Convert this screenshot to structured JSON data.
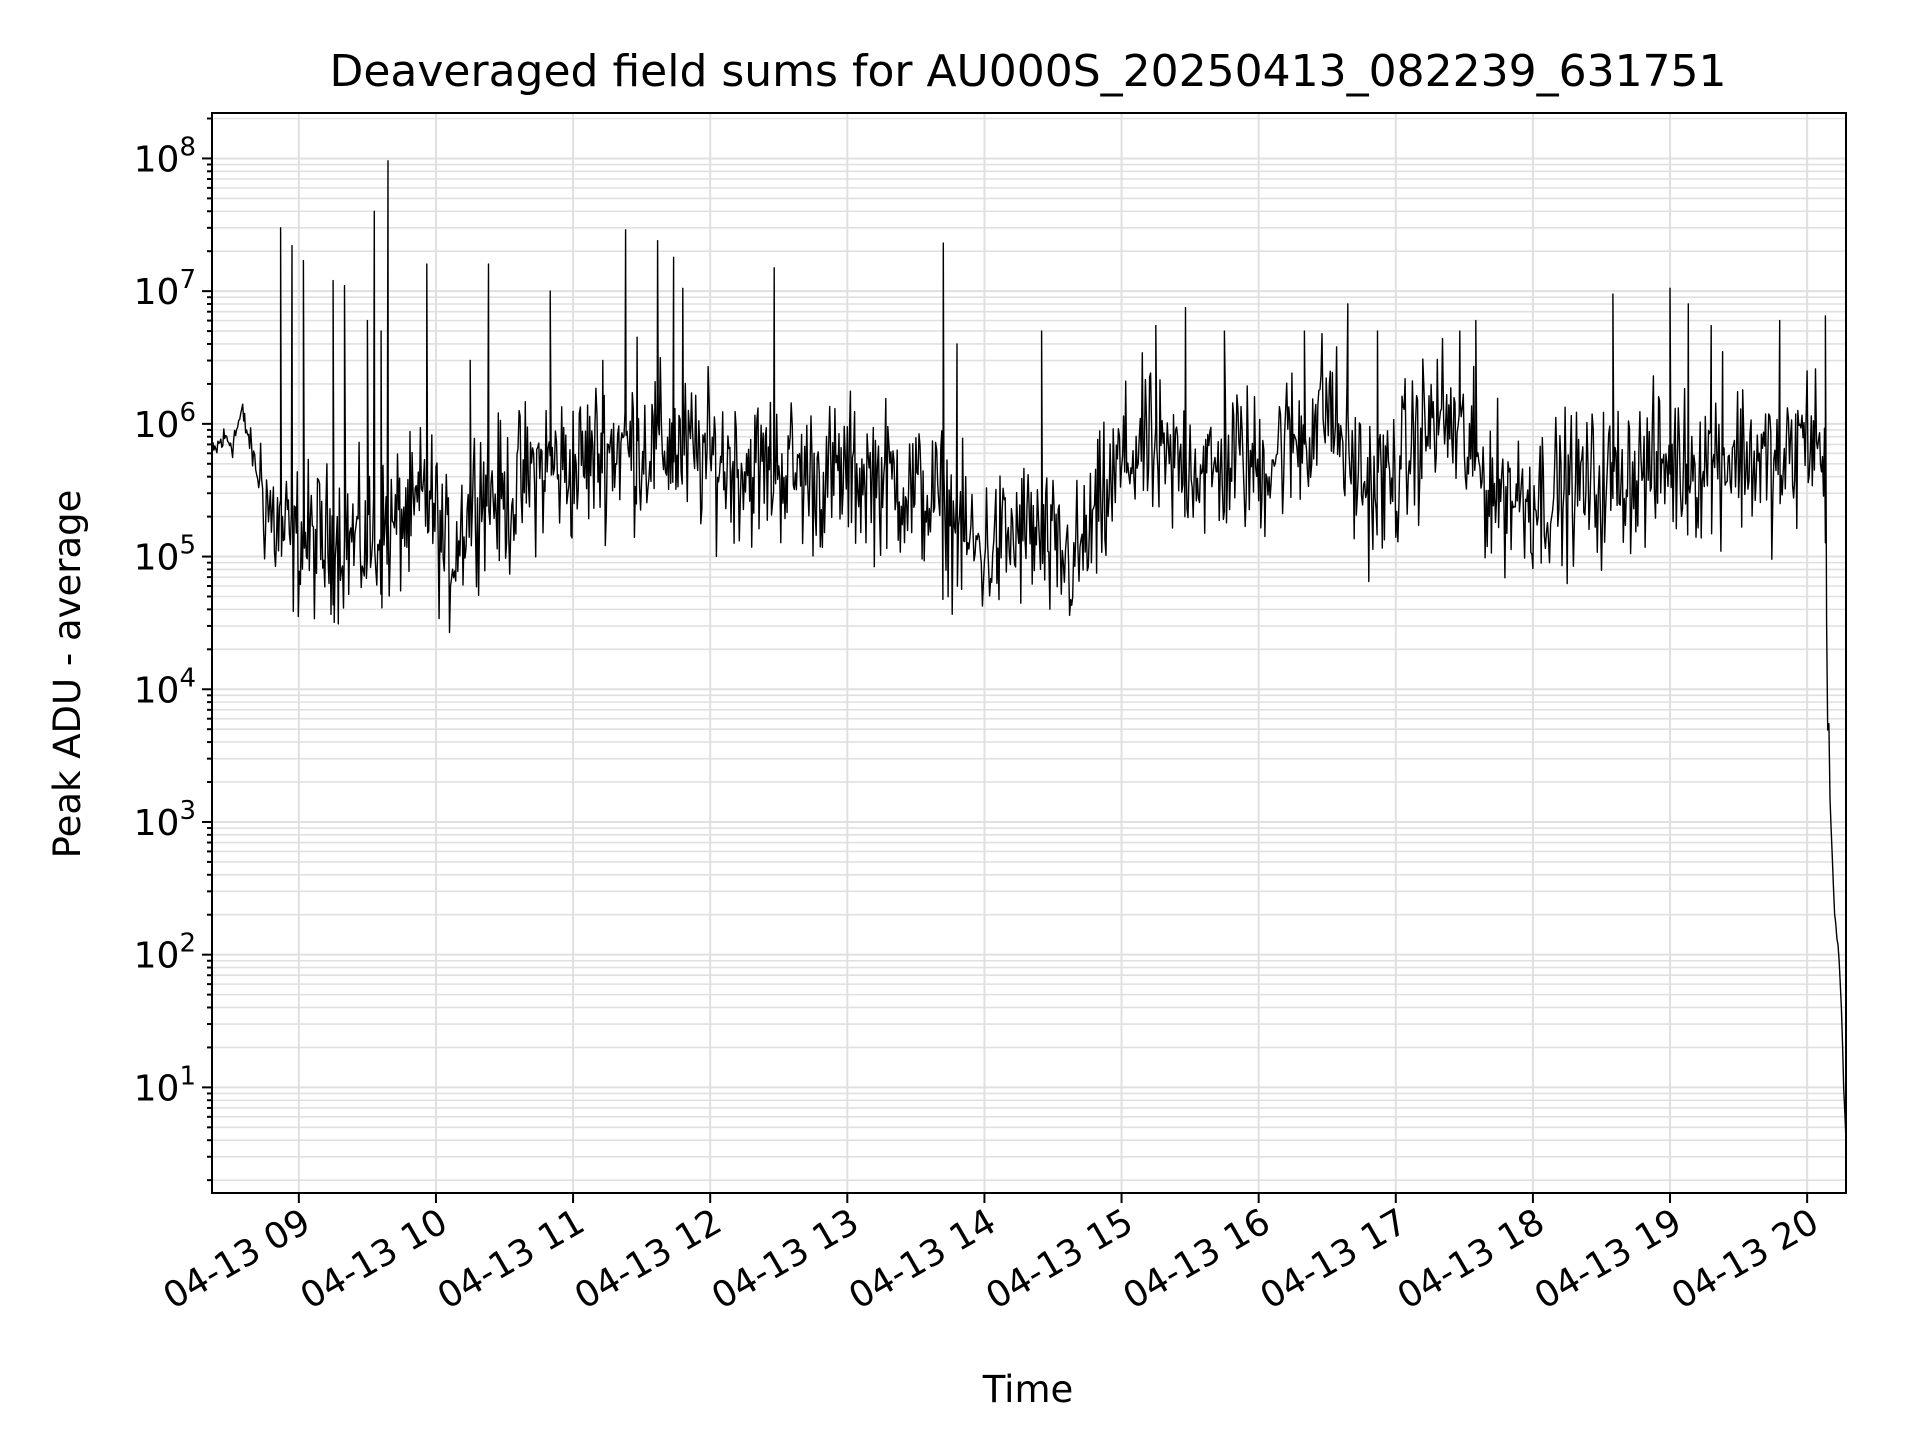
{
  "chart_data": {
    "type": "line",
    "title": "Deaveraged field sums for AU000S_20250413_082239_631751",
    "xlabel": "Time",
    "ylabel": "Peak ADU - average",
    "yscale": "log",
    "xlim": [
      "2025-04-13 08:22",
      "2025-04-13 20:17"
    ],
    "ylim": [
      1.6,
      220000000.0
    ],
    "grid": {
      "major": true,
      "minor": true,
      "color": "#e0e0e0"
    },
    "line_color": "#000000",
    "x_ticks": [
      "04-13 09",
      "04-13 10",
      "04-13 11",
      "04-13 12",
      "04-13 13",
      "04-13 14",
      "04-13 15",
      "04-13 16",
      "04-13 17",
      "04-13 18",
      "04-13 19",
      "04-13 20"
    ],
    "y_ticks": [
      {
        "base": "10",
        "exp": "1",
        "value": 10
      },
      {
        "base": "10",
        "exp": "2",
        "value": 100
      },
      {
        "base": "10",
        "exp": "3",
        "value": 1000
      },
      {
        "base": "10",
        "exp": "4",
        "value": 10000
      },
      {
        "base": "10",
        "exp": "5",
        "value": 100000
      },
      {
        "base": "10",
        "exp": "6",
        "value": 1000000
      },
      {
        "base": "10",
        "exp": "7",
        "value": 10000000
      },
      {
        "base": "10",
        "exp": "8",
        "value": 100000000
      }
    ],
    "series": [
      {
        "x": [
          "08:22",
          "08:25",
          "08:28",
          "08:31",
          "08:35",
          "08:38",
          "08:42",
          "08:45",
          "08:48",
          "08:52",
          "08:55",
          "08:58",
          "09:02",
          "09:05",
          "09:10",
          "09:15",
          "09:20",
          "09:25",
          "09:30",
          "09:35",
          "09:40",
          "09:45",
          "09:50",
          "09:55",
          "10:00",
          "10:05",
          "10:10",
          "10:15",
          "10:20",
          "10:25",
          "10:30",
          "10:40",
          "10:50",
          "11:00",
          "11:10",
          "11:20",
          "11:30",
          "11:40",
          "11:50",
          "12:00",
          "12:10",
          "12:20",
          "12:30",
          "12:40",
          "12:50",
          "13:00",
          "13:10",
          "13:20",
          "13:30",
          "13:40",
          "13:50",
          "13:55",
          "14:00",
          "14:10",
          "14:20",
          "14:30",
          "14:40",
          "14:50",
          "15:00",
          "15:10",
          "15:20",
          "15:30",
          "15:40",
          "15:50",
          "16:00",
          "16:10",
          "16:20",
          "16:30",
          "16:40",
          "16:50",
          "17:00",
          "17:10",
          "17:20",
          "17:30",
          "17:40",
          "17:50",
          "18:00",
          "18:10",
          "18:20",
          "18:30",
          "18:40",
          "18:50",
          "19:00",
          "19:10",
          "19:20",
          "19:30",
          "19:40",
          "19:50",
          "20:00",
          "20:05",
          "20:08",
          "20:10",
          "20:12",
          "20:14",
          "20:15",
          "20:16",
          "20:17"
        ],
        "y": [
          550000,
          700000,
          780000,
          720000,
          1200000,
          800000,
          400000,
          300000,
          200000,
          150000,
          140000,
          130000,
          140000,
          130000,
          125000,
          135000,
          140000,
          130000,
          125000,
          140000,
          150000,
          200000,
          180000,
          300000,
          200000,
          90000,
          150000,
          250000,
          350000,
          300000,
          250000,
          400000,
          500000,
          450000,
          600000,
          700000,
          650000,
          700000,
          600000,
          550000,
          500000,
          450000,
          480000,
          420000,
          380000,
          420000,
          400000,
          380000,
          300000,
          250000,
          150000,
          120000,
          110000,
          130000,
          160000,
          100000,
          90000,
          200000,
          500000,
          700000,
          450000,
          550000,
          400000,
          600000,
          450000,
          700000,
          800000,
          1500000,
          500000,
          300000,
          400000,
          800000,
          1200000,
          700000,
          350000,
          300000,
          280000,
          300000,
          350000,
          330000,
          420000,
          450000,
          500000,
          480000,
          550000,
          600000,
          520000,
          450000,
          850000,
          800000,
          250000,
          1500,
          200,
          90,
          40,
          10,
          4
        ]
      }
    ],
    "spikes": [
      {
        "x": "08:52",
        "y": 30000000
      },
      {
        "x": "08:57",
        "y": 22000000
      },
      {
        "x": "09:02",
        "y": 17000000
      },
      {
        "x": "09:15",
        "y": 12000000
      },
      {
        "x": "09:20",
        "y": 11000000
      },
      {
        "x": "09:30",
        "y": 6000000
      },
      {
        "x": "09:33",
        "y": 40000000
      },
      {
        "x": "09:36",
        "y": 5000000
      },
      {
        "x": "09:39",
        "y": 96000000
      },
      {
        "x": "09:56",
        "y": 16000000
      },
      {
        "x": "10:15",
        "y": 3000000
      },
      {
        "x": "10:23",
        "y": 16000000
      },
      {
        "x": "10:50",
        "y": 10000000
      },
      {
        "x": "11:13",
        "y": 3000000
      },
      {
        "x": "11:23",
        "y": 29000000
      },
      {
        "x": "11:28",
        "y": 4500000
      },
      {
        "x": "11:37",
        "y": 24000000
      },
      {
        "x": "11:44",
        "y": 18000000
      },
      {
        "x": "11:48",
        "y": 10500000
      },
      {
        "x": "12:28",
        "y": 15000000
      },
      {
        "x": "13:42",
        "y": 23000000
      },
      {
        "x": "13:48",
        "y": 4000000
      },
      {
        "x": "14:25",
        "y": 5000000
      },
      {
        "x": "15:15",
        "y": 5500000
      },
      {
        "x": "15:28",
        "y": 7500000
      },
      {
        "x": "15:45",
        "y": 5000000
      },
      {
        "x": "16:20",
        "y": 5000000
      },
      {
        "x": "16:39",
        "y": 8000000
      },
      {
        "x": "16:52",
        "y": 5000000
      },
      {
        "x": "17:28",
        "y": 5000000
      },
      {
        "x": "17:35",
        "y": 6000000
      },
      {
        "x": "18:35",
        "y": 9500000
      },
      {
        "x": "19:00",
        "y": 10500000
      },
      {
        "x": "19:08",
        "y": 8000000
      },
      {
        "x": "19:18",
        "y": 5500000
      },
      {
        "x": "19:23",
        "y": 3500000
      },
      {
        "x": "19:48",
        "y": 6000000
      },
      {
        "x": "20:08",
        "y": 6500000
      }
    ]
  }
}
